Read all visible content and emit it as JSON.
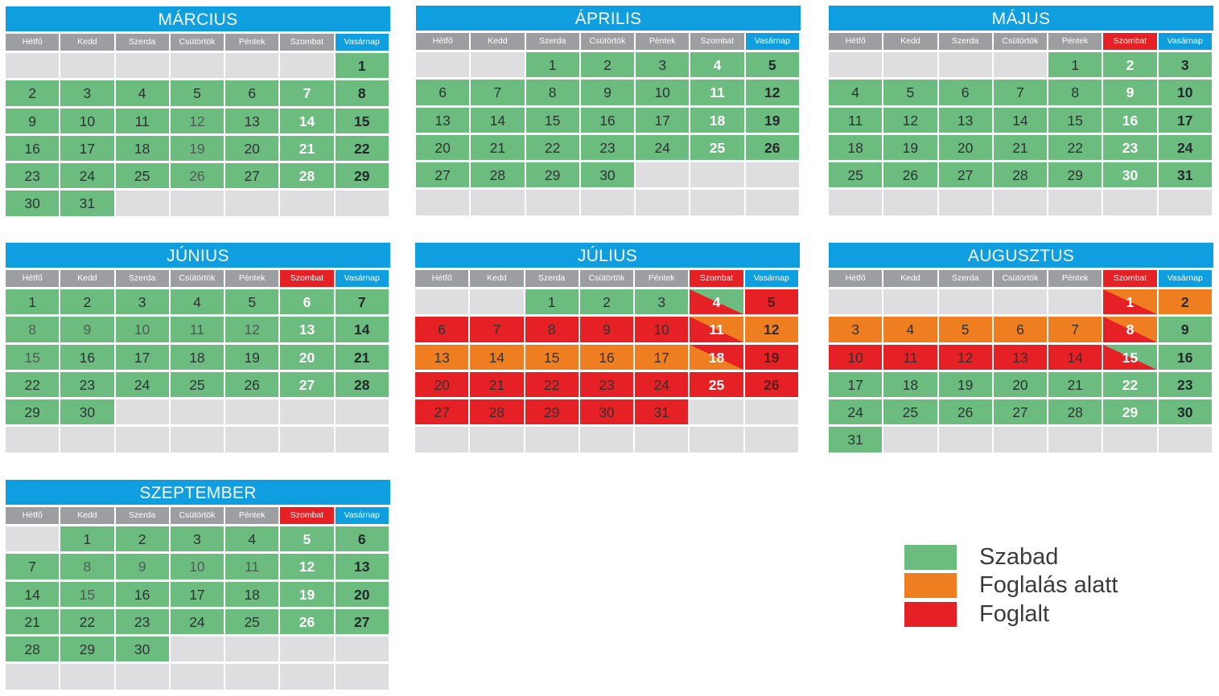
{
  "weekdays": [
    "Hétfő",
    "Kedd",
    "Szerda",
    "Csütörtök",
    "Péntek",
    "Szombat",
    "Vasárnap"
  ],
  "colors": {
    "free": "#6cbc7f",
    "pending": "#ee7e1f",
    "booked": "#e62126",
    "empty": "#dedee0",
    "header": "#0f9fe0"
  },
  "months": [
    {
      "name": "MÁRCIUS",
      "offset": 6,
      "days": 31,
      "highlight_weekend_header": false,
      "status": {}
    },
    {
      "name": "ÁPRILIS",
      "offset": 2,
      "days": 30,
      "highlight_weekend_header": false,
      "status": {}
    },
    {
      "name": "MÁJUS",
      "offset": 4,
      "days": 31,
      "highlight_weekend_header": true,
      "status": {}
    },
    {
      "name": "JÚNIUS",
      "offset": 0,
      "days": 30,
      "highlight_weekend_header": true,
      "status": {}
    },
    {
      "name": "JÚLIUS",
      "offset": 2,
      "days": 31,
      "highlight_weekend_header": true,
      "status": {
        "4": "free-booked",
        "5": "booked",
        "6": "booked",
        "7": "booked",
        "8": "booked",
        "9": "booked",
        "10": "booked",
        "11": "booked-pending",
        "12": "pending",
        "13": "pending",
        "14": "pending",
        "15": "pending",
        "16": "pending",
        "17": "pending",
        "18": "pending-booked",
        "19": "booked",
        "20": "booked",
        "21": "booked",
        "22": "booked",
        "23": "booked",
        "24": "booked",
        "25": "booked",
        "26": "booked",
        "27": "booked",
        "28": "booked",
        "29": "booked",
        "30": "booked",
        "31": "booked"
      }
    },
    {
      "name": "AUGUSZTUS",
      "offset": 5,
      "days": 31,
      "highlight_weekend_header": true,
      "status": {
        "1": "booked-pending",
        "2": "pending",
        "3": "pending",
        "4": "pending",
        "5": "pending",
        "6": "pending",
        "7": "pending",
        "8": "booked-pending",
        "10": "booked",
        "11": "booked",
        "12": "booked",
        "13": "booked",
        "14": "booked",
        "15": "booked-free"
      }
    },
    {
      "name": "SZEPTEMBER",
      "offset": 1,
      "days": 30,
      "highlight_weekend_header": true,
      "status": {}
    }
  ],
  "legend": [
    {
      "label": "Szabad",
      "color": "#6cbc7f"
    },
    {
      "label": "Foglalás alatt",
      "color": "#ee7e1f"
    },
    {
      "label": "Foglalt",
      "color": "#e62126"
    }
  ]
}
